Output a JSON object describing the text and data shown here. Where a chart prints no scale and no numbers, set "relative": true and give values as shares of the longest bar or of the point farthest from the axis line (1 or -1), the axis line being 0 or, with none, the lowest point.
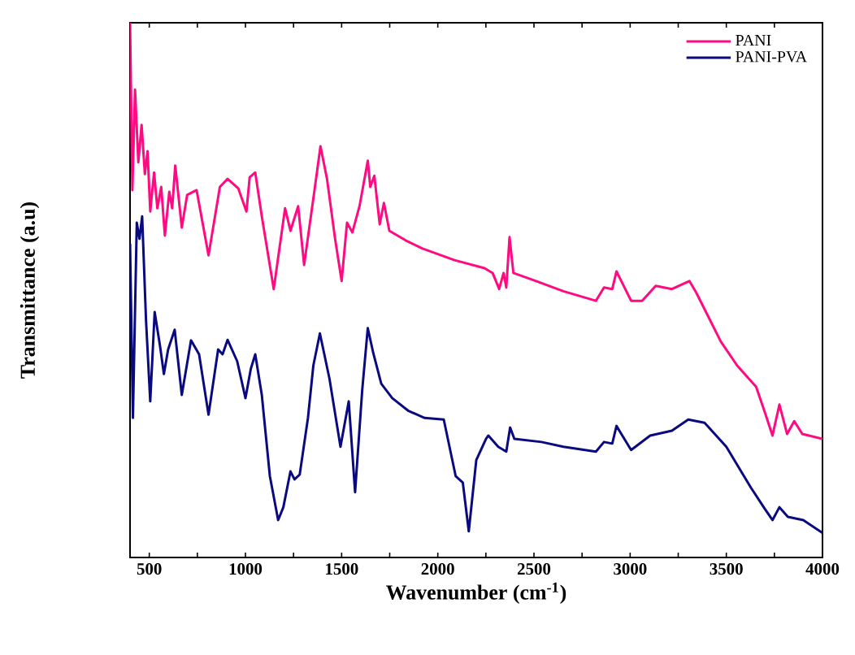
{
  "chart_data": {
    "type": "line",
    "xlabel": "Wavenumber (cm$^{-1}$)",
    "ylabel": "Transmittance (a.u)",
    "relative": true,
    "xlim": [
      400,
      4000
    ],
    "xticks": [
      500,
      {
        "value": 750,
        "label": null
      },
      1000,
      {
        "value": 1250,
        "label": null
      },
      1500,
      {
        "value": 1750,
        "label": null
      },
      2000,
      {
        "value": 2250,
        "label": null
      },
      2500,
      {
        "value": 2750,
        "label": null
      },
      3000,
      {
        "value": 3250,
        "label": null
      },
      3500,
      {
        "value": 3750,
        "label": null
      },
      4000
    ],
    "tick_labels": "x",
    "grid": false,
    "legend": "top right",
    "series": [
      {
        "name": "PANI",
        "color": "#ff0a80",
        "x": [
          400,
          412,
          426,
          443,
          460,
          477,
          491,
          505,
          525,
          542,
          562,
          581,
          604,
          619,
          635,
          669,
          697,
          746,
          808,
          867,
          907,
          963,
          1005,
          1022,
          1051,
          1085,
          1147,
          1206,
          1234,
          1274,
          1305,
          1359,
          1390,
          1424,
          1466,
          1500,
          1528,
          1556,
          1593,
          1636,
          1649,
          1670,
          1698,
          1720,
          1748,
          1833,
          1918,
          2087,
          2243,
          2285,
          2319,
          2342,
          2356,
          2373,
          2393,
          2511,
          2653,
          2822,
          2864,
          2907,
          2929,
          3005,
          3062,
          3133,
          3217,
          3308,
          3344,
          3471,
          3556,
          3655,
          3698,
          3740,
          3776,
          3816,
          3853,
          3895,
          4000
        ],
        "values": [
          1.0,
          0.687,
          0.875,
          0.739,
          0.809,
          0.717,
          0.76,
          0.647,
          0.72,
          0.653,
          0.693,
          0.602,
          0.684,
          0.653,
          0.733,
          0.617,
          0.678,
          0.687,
          0.565,
          0.693,
          0.708,
          0.69,
          0.647,
          0.711,
          0.72,
          0.638,
          0.502,
          0.653,
          0.611,
          0.657,
          0.547,
          0.687,
          0.769,
          0.708,
          0.596,
          0.517,
          0.626,
          0.608,
          0.657,
          0.742,
          0.693,
          0.714,
          0.623,
          0.663,
          0.611,
          0.593,
          0.578,
          0.556,
          0.541,
          0.532,
          0.502,
          0.532,
          0.505,
          0.599,
          0.532,
          0.517,
          0.498,
          0.48,
          0.505,
          0.502,
          0.535,
          0.48,
          0.48,
          0.508,
          0.502,
          0.517,
          0.495,
          0.404,
          0.359,
          0.319,
          0.274,
          0.228,
          0.286,
          0.231,
          0.255,
          0.231,
          0.222
        ]
      },
      {
        "name": "PANI-PVA",
        "color": "#0a0a80",
        "x": [
          400,
          415,
          435,
          449,
          463,
          483,
          505,
          528,
          556,
          576,
          598,
          632,
          669,
          717,
          759,
          808,
          858,
          881,
          907,
          957,
          1000,
          1028,
          1051,
          1085,
          1127,
          1170,
          1197,
          1234,
          1255,
          1282,
          1325,
          1353,
          1387,
          1437,
          1494,
          1537,
          1570,
          1607,
          1636,
          1664,
          1706,
          1763,
          1848,
          1932,
          2031,
          2093,
          2130,
          2161,
          2200,
          2251,
          2263,
          2314,
          2356,
          2376,
          2398,
          2539,
          2653,
          2822,
          2864,
          2907,
          2929,
          3005,
          3104,
          3217,
          3302,
          3387,
          3500,
          3627,
          3700,
          3740,
          3776,
          3820,
          3900,
          4000
        ],
        "values": [
          0.587,
          0.261,
          0.626,
          0.596,
          0.638,
          0.444,
          0.292,
          0.459,
          0.395,
          0.343,
          0.389,
          0.426,
          0.304,
          0.406,
          0.38,
          0.267,
          0.389,
          0.38,
          0.407,
          0.367,
          0.298,
          0.353,
          0.38,
          0.304,
          0.152,
          0.07,
          0.094,
          0.161,
          0.146,
          0.155,
          0.261,
          0.359,
          0.419,
          0.334,
          0.207,
          0.292,
          0.122,
          0.313,
          0.429,
          0.383,
          0.325,
          0.298,
          0.274,
          0.261,
          0.258,
          0.152,
          0.14,
          0.049,
          0.182,
          0.222,
          0.228,
          0.207,
          0.198,
          0.243,
          0.222,
          0.216,
          0.207,
          0.198,
          0.216,
          0.213,
          0.246,
          0.201,
          0.228,
          0.237,
          0.258,
          0.252,
          0.207,
          0.131,
          0.091,
          0.07,
          0.094,
          0.076,
          0.07,
          0.046
        ]
      }
    ]
  }
}
